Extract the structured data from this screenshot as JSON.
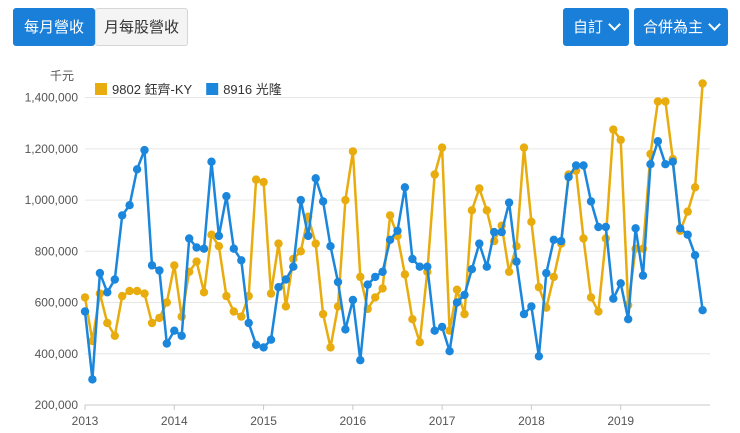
{
  "toolbar": {
    "tab_monthly": "每月營收",
    "tab_per_share": "月每股營收",
    "custom_label": "自訂",
    "consolidated_label": "合併為主"
  },
  "chart_data": {
    "type": "line",
    "ylabel": "千元",
    "ylim": [
      200000,
      1500000
    ],
    "yticks": [
      200000,
      400000,
      600000,
      800000,
      1000000,
      1200000,
      1400000
    ],
    "ytick_labels": [
      "200,000",
      "400,000",
      "600,000",
      "800,000",
      "1,000,000",
      "1,200,000",
      "1,400,000"
    ],
    "x_start": "2013-01",
    "x_end": "2020-01",
    "xtick_labels": [
      "2013",
      "2014",
      "2015",
      "2016",
      "2017",
      "2018",
      "2019"
    ],
    "grid": true,
    "legend_position": "top-left",
    "series": [
      {
        "name": "9802 鈺齊-KY",
        "color": "#e8ac0e",
        "values": [
          620000,
          450000,
          635000,
          520000,
          470000,
          625000,
          645000,
          645000,
          635000,
          520000,
          540000,
          600000,
          745000,
          545000,
          720000,
          760000,
          640000,
          865000,
          820000,
          625000,
          565000,
          545000,
          625000,
          1080000,
          1070000,
          635000,
          830000,
          585000,
          770000,
          800000,
          935000,
          830000,
          555000,
          425000,
          585000,
          1000000,
          1190000,
          700000,
          575000,
          620000,
          655000,
          940000,
          860000,
          710000,
          535000,
          445000,
          720000,
          1100000,
          1205000,
          490000,
          650000,
          555000,
          960000,
          1045000,
          960000,
          840000,
          900000,
          720000,
          820000,
          1205000,
          915000,
          660000,
          580000,
          700000,
          830000,
          1100000,
          1115000,
          850000,
          620000,
          565000,
          850000,
          1275000,
          1235000,
          590000,
          810000,
          810000,
          1180000,
          1385000,
          1385000,
          1160000,
          880000,
          955000,
          1050000,
          1455000
        ]
      },
      {
        "name": "8916 光隆",
        "color": "#1a86dc",
        "values": [
          565000,
          300000,
          715000,
          640000,
          690000,
          940000,
          980000,
          1120000,
          1195000,
          745000,
          725000,
          440000,
          490000,
          470000,
          850000,
          815000,
          810000,
          1150000,
          860000,
          1015000,
          810000,
          765000,
          520000,
          435000,
          425000,
          455000,
          660000,
          690000,
          740000,
          1000000,
          860000,
          1085000,
          995000,
          820000,
          680000,
          495000,
          610000,
          375000,
          670000,
          700000,
          720000,
          845000,
          880000,
          1050000,
          770000,
          740000,
          740000,
          490000,
          505000,
          410000,
          600000,
          630000,
          730000,
          830000,
          740000,
          875000,
          875000,
          990000,
          760000,
          555000,
          585000,
          390000,
          715000,
          845000,
          840000,
          1090000,
          1135000,
          1135000,
          995000,
          895000,
          895000,
          615000,
          675000,
          535000,
          890000,
          705000,
          1140000,
          1230000,
          1140000,
          1150000,
          890000,
          865000,
          785000,
          570000
        ]
      }
    ]
  }
}
